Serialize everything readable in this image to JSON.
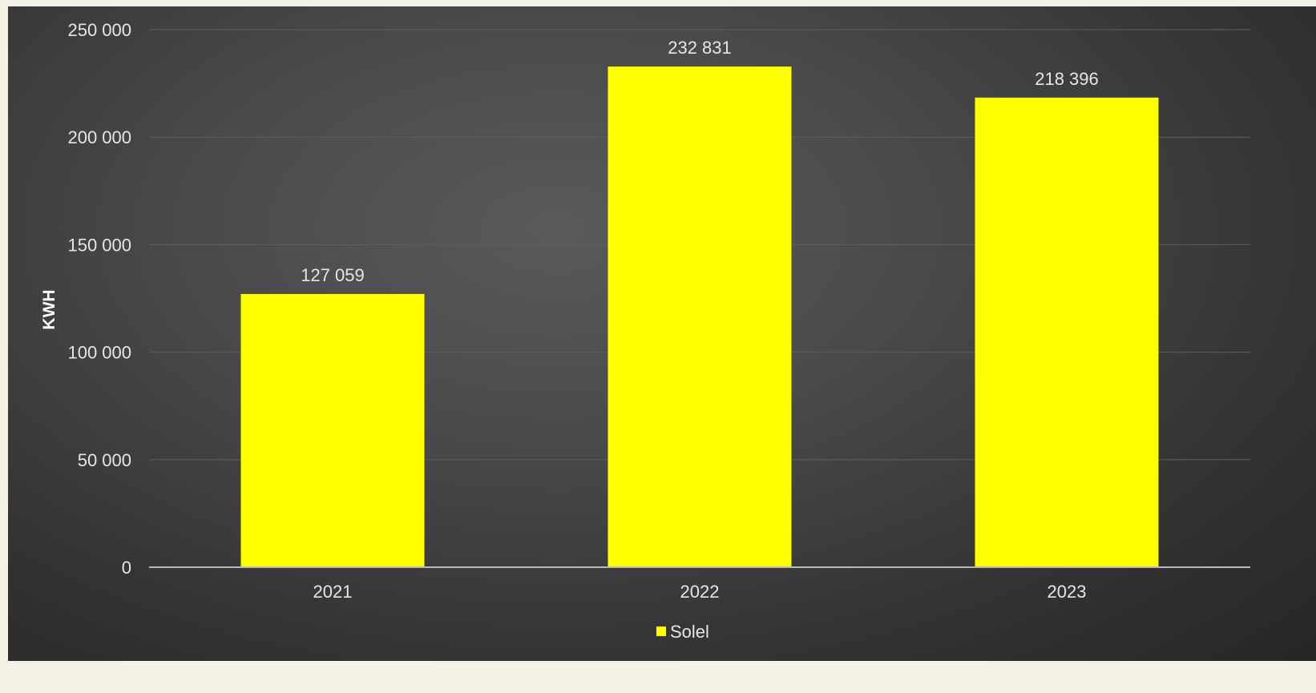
{
  "chart_data": {
    "type": "bar",
    "categories": [
      "2021",
      "2022",
      "2023"
    ],
    "series": [
      {
        "name": "Solel",
        "values": [
          127059,
          232831,
          218396
        ],
        "color": "#ffff00"
      }
    ],
    "value_labels": [
      "127 059",
      "232 831",
      "218 396"
    ],
    "ylabel": "KWH",
    "ylim": [
      0,
      250000
    ],
    "y_ticks": [
      0,
      50000,
      100000,
      150000,
      200000,
      250000
    ],
    "y_tick_labels": [
      "0",
      "50 000",
      "100 000",
      "150 000",
      "200 000",
      "250 000"
    ],
    "grid": true,
    "legend": "bottom-center",
    "background": "#3f3f3f"
  }
}
